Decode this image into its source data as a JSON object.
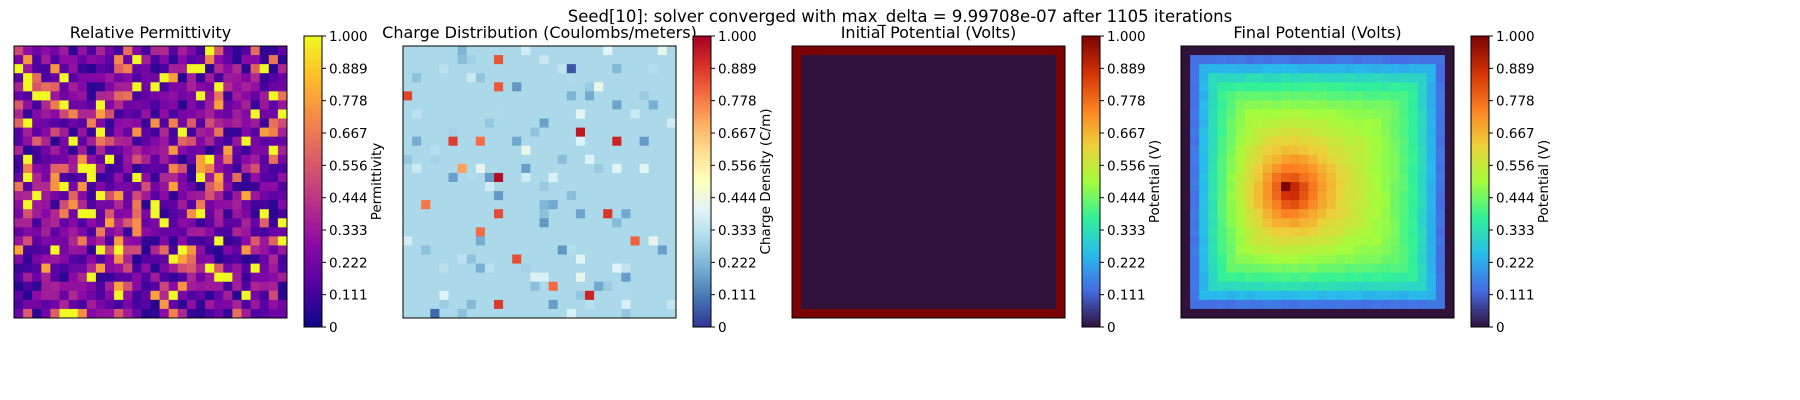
{
  "figure": {
    "suptitle": "Seed[10]: solver converged with max_delta = 9.99708e-07 after 1105 iterations"
  },
  "colorbar_ticks": [
    "0",
    "0.111",
    "0.222",
    "0.333",
    "0.444",
    "0.556",
    "0.667",
    "0.778",
    "0.889",
    "1.000"
  ],
  "chart_data": [
    {
      "type": "heatmap",
      "title": "Relative Permittivity",
      "colorbar_label": "Permittivity",
      "colormap": "plasma",
      "vmin": 0,
      "vmax": 1,
      "grid_size": 30,
      "show_axes_ticks": false
    },
    {
      "type": "heatmap",
      "title": "Charge Distribution (Coulombs/meters)",
      "colorbar_label": "Charge Density (C/m)",
      "colormap": "RdYlBu_r",
      "vmin": 0,
      "vmax": 1,
      "grid_size": 30,
      "background_value": 0.3,
      "show_axes_ticks": false
    },
    {
      "type": "heatmap",
      "title": "Initial Potential (Volts)",
      "colorbar_label": "Potential (V)",
      "colormap": "turbo",
      "vmin": 0,
      "vmax": 1,
      "grid_size": 30,
      "boundary_value": 1.0,
      "interior_value": 0.0,
      "show_axes_ticks": false
    },
    {
      "type": "heatmap",
      "title": "Final Potential (Volts)",
      "colorbar_label": "Potential (V)",
      "colormap": "turbo",
      "vmin": 0,
      "vmax": 1,
      "grid_size": 30,
      "peak_value": 1.0,
      "show_axes_ticks": false
    }
  ]
}
